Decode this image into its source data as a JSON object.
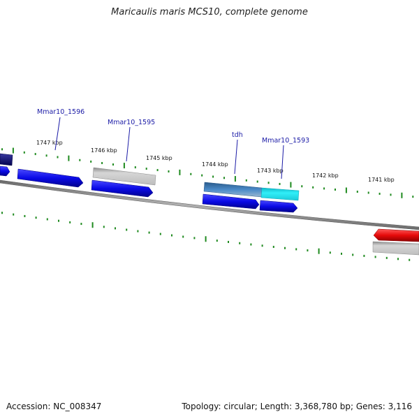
{
  "title": "Maricaulis maris MCS10, complete genome",
  "footer": {
    "accession": "Accession: NC_008347",
    "topology": "Topology: circular; Length: 3,368,780 bp; Genes: 3,116"
  },
  "colors": {
    "backbone": "#808080",
    "tick": "#1f8a1f",
    "gene_label": "#1a1aa6",
    "gene_blue": "#0a0ae6",
    "gene_navy": "#0a0a7a",
    "gene_grey": "#b8b8b8",
    "gene_cyan": "#22d6e6",
    "gene_steel": "#3a78b8",
    "gene_red": "#e60a0a"
  },
  "scale_labels": [
    "1747 kbp",
    "1746 kbp",
    "1745 kbp",
    "1744 kbp",
    "1743 kbp",
    "1742 kbp",
    "1741 kbp"
  ],
  "gene_labels": [
    "Mmar10_1596",
    "Mmar10_1595",
    "tdh",
    "Mmar10_1593"
  ],
  "genes": [
    {
      "kind": "blue arrow",
      "color": "#0a0ae6"
    },
    {
      "kind": "navy arrow",
      "color": "#0a0a7a"
    },
    {
      "kind": "blue arrow",
      "color": "#0a0ae6"
    },
    {
      "kind": "blue arrow",
      "color": "#0a0ae6"
    },
    {
      "kind": "grey bar",
      "color": "#b8b8b8"
    },
    {
      "kind": "steel bar",
      "color": "#3a78b8"
    },
    {
      "kind": "cyan bar",
      "color": "#22d6e6"
    },
    {
      "kind": "blue arrow",
      "color": "#0a0ae6"
    },
    {
      "kind": "blue arrow",
      "color": "#0a0ae6"
    },
    {
      "kind": "red arrow",
      "color": "#e60a0a"
    },
    {
      "kind": "grey bar",
      "color": "#b8b8b8"
    }
  ]
}
